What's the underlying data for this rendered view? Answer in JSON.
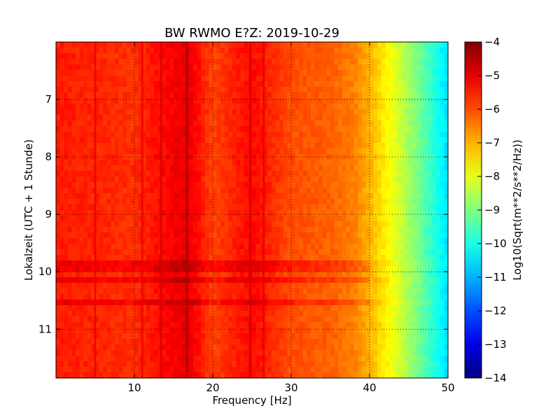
{
  "chart_data": {
    "type": "heatmap",
    "title": "BW RWMO E?Z: 2019-10-29",
    "xlabel": "Frequency [Hz]",
    "ylabel": "Lokalzeit (UTC + 1 Stunde)",
    "xlim": [
      0,
      50
    ],
    "ylim": [
      11.85,
      6.0
    ],
    "x_ticks": [
      10,
      20,
      30,
      40,
      50
    ],
    "y_ticks": [
      7,
      8,
      9,
      10,
      11
    ],
    "grid": true,
    "colormap": "jet",
    "colorbar": {
      "label": "Log10(Sqrt(m**2/s**2/Hz))",
      "range": [
        -14,
        -4
      ],
      "ticks": [
        -4,
        -5,
        -6,
        -7,
        -8,
        -9,
        -10,
        -11,
        -12,
        -13,
        -14
      ]
    },
    "spectrum_profile": {
      "frequency_hz": [
        0,
        5,
        10,
        16.7,
        20,
        25,
        30,
        35,
        38,
        40,
        42,
        44,
        46,
        48,
        50
      ],
      "log10_psd": [
        -5.5,
        -5.6,
        -5.7,
        -5.0,
        -5.9,
        -5.3,
        -6.0,
        -6.2,
        -6.5,
        -7.0,
        -7.6,
        -8.3,
        -9.0,
        -9.8,
        -10.6
      ]
    },
    "narrowband_lines_hz": [
      5,
      11,
      13.4,
      16.7,
      24.8,
      26.5
    ],
    "broadband_events_time": [
      9.9,
      10.15,
      10.5
    ]
  }
}
